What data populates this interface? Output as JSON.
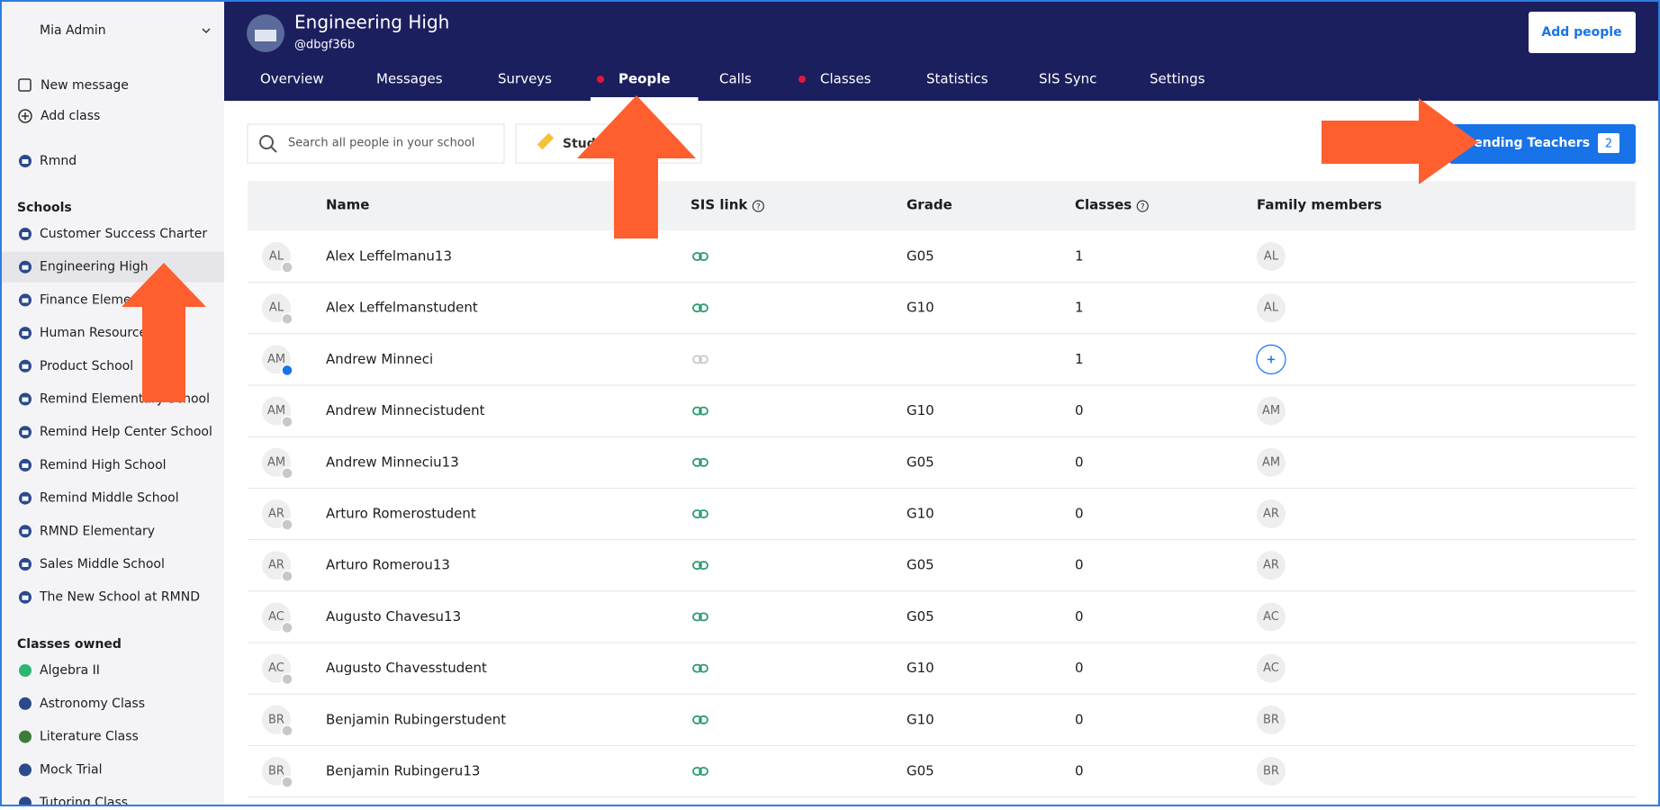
{
  "sidebar": {
    "user": "Mia Admin",
    "actions": [
      "New message",
      "Add class"
    ],
    "org": "Rmnd",
    "schools_heading": "Schools",
    "schools": [
      "Customer Success Charter",
      "Engineering High",
      "Finance Elementary",
      "Human Resources",
      "Product School",
      "Remind Elementary School",
      "Remind Help Center School",
      "Remind High School",
      "Remind Middle School",
      "RMND Elementary",
      "Sales Middle School",
      "The New School at RMND"
    ],
    "active_school": 1,
    "classes_heading": "Classes owned",
    "classes": [
      "Algebra II",
      "Astronomy Class",
      "Literature Class",
      "Mock Trial",
      "Tutoring Class"
    ]
  },
  "header": {
    "school_name": "Engineering High",
    "handle": "@dbgf36b",
    "add_button": "Add people",
    "tabs": [
      {
        "label": "Overview"
      },
      {
        "label": "Messages"
      },
      {
        "label": "Surveys"
      },
      {
        "label": "People",
        "dot": true,
        "active": true
      },
      {
        "label": "Calls"
      },
      {
        "label": "Classes",
        "dot": true
      },
      {
        "label": "Statistics"
      },
      {
        "label": "SIS Sync"
      },
      {
        "label": "Settings"
      }
    ]
  },
  "toolbar": {
    "search_placeholder": "Search all people in your school",
    "filter": "Students",
    "pending_button": "Pending Teachers",
    "pending_count": 2
  },
  "table": {
    "columns": [
      {
        "label": "Name"
      },
      {
        "label": "SIS link",
        "help": true
      },
      {
        "label": "Grade"
      },
      {
        "label": "Classes",
        "help": true
      },
      {
        "label": "Family members"
      }
    ],
    "rows": [
      {
        "initials": "AL",
        "name": "Alex Leffelmanu13",
        "linked": true,
        "grade": "G05",
        "classes": 1,
        "family": "AL"
      },
      {
        "initials": "AL",
        "name": "Alex Leffelmanstudent",
        "linked": true,
        "grade": "G10",
        "classes": 1,
        "family": "AL"
      },
      {
        "initials": "AM",
        "name": "Andrew Minneci",
        "linked": false,
        "grade": null,
        "classes": 1,
        "family": null
      },
      {
        "initials": "AM",
        "name": "Andrew Minnecistudent",
        "linked": true,
        "grade": "G10",
        "classes": 0,
        "family": "AM"
      },
      {
        "initials": "AM",
        "name": "Andrew Minneciu13",
        "linked": true,
        "grade": "G05",
        "classes": 0,
        "family": "AM"
      },
      {
        "initials": "AR",
        "name": "Arturo Romerostudent",
        "linked": true,
        "grade": "G10",
        "classes": 0,
        "family": "AR"
      },
      {
        "initials": "AR",
        "name": "Arturo Romerou13",
        "linked": true,
        "grade": "G05",
        "classes": 0,
        "family": "AR"
      },
      {
        "initials": "AC",
        "name": "Augusto Chavesu13",
        "linked": true,
        "grade": "G05",
        "classes": 0,
        "family": "AC"
      },
      {
        "initials": "AC",
        "name": "Augusto Chavesstudent",
        "linked": true,
        "grade": "G10",
        "classes": 0,
        "family": "AC"
      },
      {
        "initials": "BR",
        "name": "Benjamin Rubingerstudent",
        "linked": true,
        "grade": "G10",
        "classes": 0,
        "family": "BR"
      },
      {
        "initials": "BR",
        "name": "Benjamin Rubingeru13",
        "linked": true,
        "grade": "G05",
        "classes": 0,
        "family": "BR"
      }
    ]
  }
}
